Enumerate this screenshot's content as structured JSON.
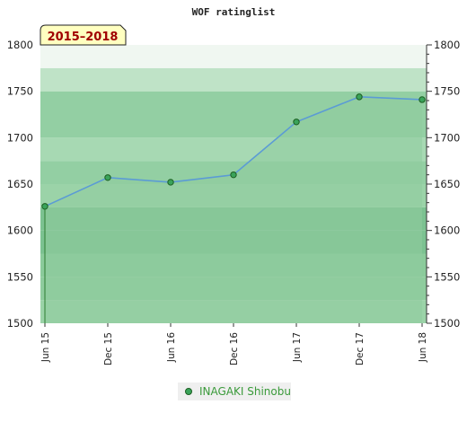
{
  "chart_data": {
    "type": "area",
    "title": "WOF ratinglist",
    "badge": "2015–2018",
    "xlabel": "",
    "ylabel": "",
    "ylim": [
      1500,
      1800
    ],
    "yticks": [
      1500,
      1550,
      1600,
      1650,
      1700,
      1750,
      1800
    ],
    "x_ticks": [
      "Jun 15",
      "Dec 15",
      "Jun 16",
      "Dec 16",
      "Jun 17",
      "Dec 17",
      "Jun 18"
    ],
    "series": [
      {
        "name": "INAGAKI Shinobu",
        "x": [
          "Jun 15",
          "Dec 15",
          "Jun 16",
          "Dec 16",
          "Jun 17",
          "Dec 17",
          "Jun 18"
        ],
        "values": [
          1626,
          1657,
          1652,
          1660,
          1717,
          1744,
          1741
        ]
      }
    ],
    "legend_position": "bottom-center",
    "grid": false,
    "colors": {
      "line": "#5b9bd5",
      "area": "#8fcc9e",
      "marker": "#2e7d32",
      "badge_bg": "#ffffc0",
      "badge_text": "#a00000",
      "legend_text": "#3a9a3a"
    }
  }
}
